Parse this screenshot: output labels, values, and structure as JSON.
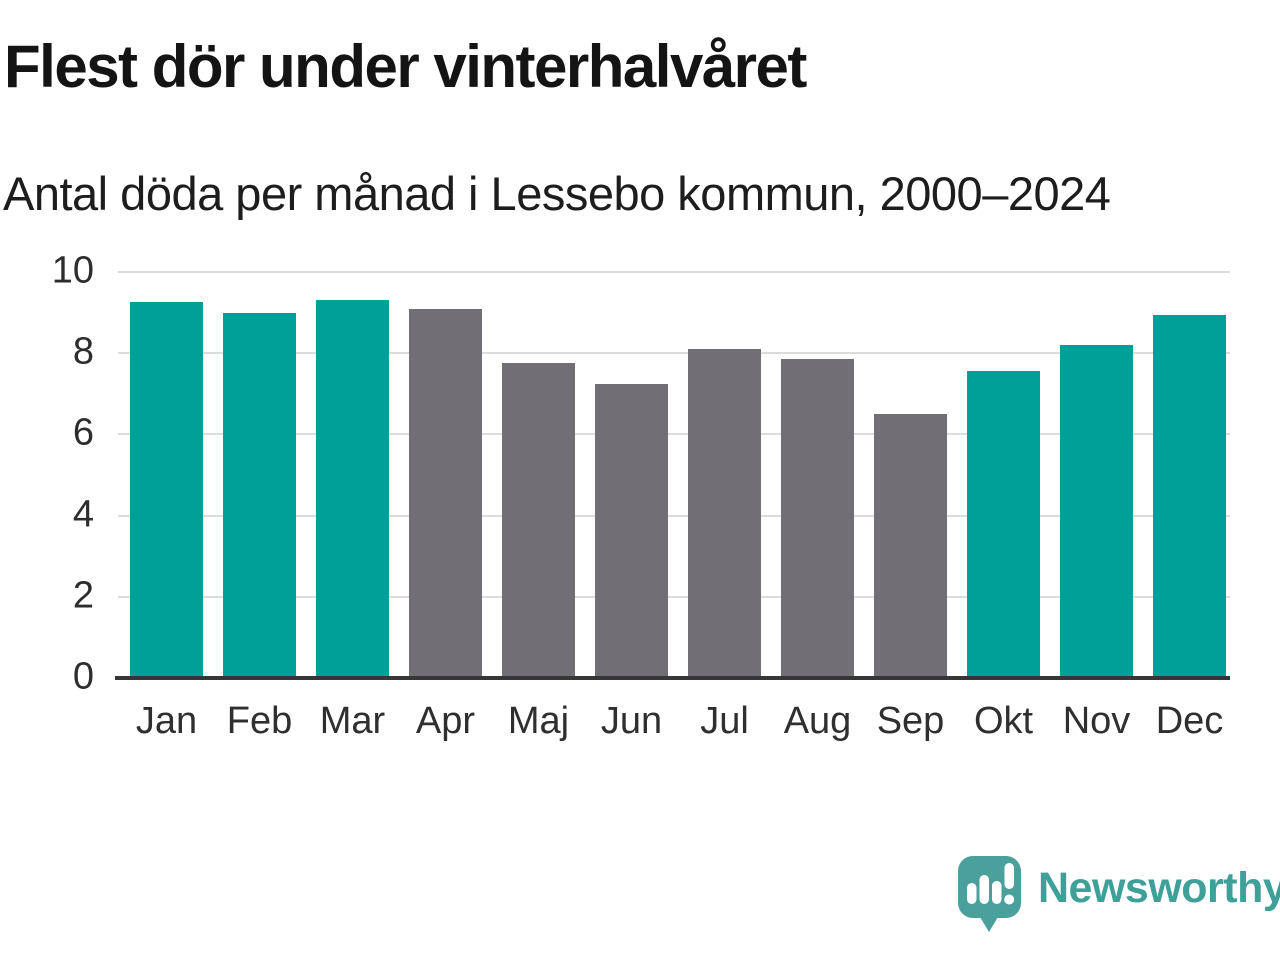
{
  "chart_data": {
    "type": "bar",
    "title": "Flest dör under vinterhalvåret",
    "subtitle": "Antal döda per månad i Lessebo kommun, 2000–2024",
    "categories": [
      "Jan",
      "Feb",
      "Mar",
      "Apr",
      "Maj",
      "Jun",
      "Jul",
      "Aug",
      "Sep",
      "Okt",
      "Nov",
      "Dec"
    ],
    "values": [
      9.25,
      9.0,
      9.3,
      9.1,
      7.75,
      7.25,
      8.1,
      7.85,
      6.5,
      7.55,
      8.2,
      8.95
    ],
    "bar_color_roles": [
      "highlight",
      "highlight",
      "highlight",
      "default",
      "default",
      "default",
      "default",
      "default",
      "default",
      "highlight",
      "highlight",
      "highlight"
    ],
    "xlabel": "",
    "ylabel": "",
    "ylim": [
      0,
      10
    ],
    "yticks": [
      0,
      2,
      4,
      6,
      8,
      10
    ],
    "grid": "horizontal",
    "legend": "none",
    "colors": {
      "highlight": "#00a099",
      "default": "#716e75",
      "gridline": "#dcdcdc",
      "axis_line": "#363636",
      "title_text": "#141414",
      "tick_text": "#2d2d2d"
    }
  },
  "branding": {
    "logo_text": "Newsworthy",
    "logo_color": "#3fa09a",
    "logo_icon": "speech-bubble-bar-chart-icon"
  }
}
